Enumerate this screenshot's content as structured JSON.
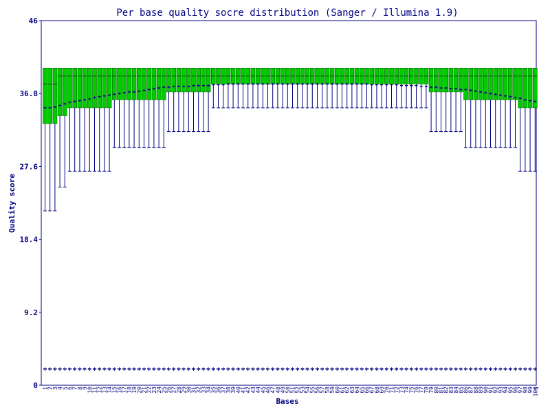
{
  "chart_data": {
    "type": "boxplot",
    "title": "Per base quality socre distribution (Sanger / Illumina 1.9)",
    "xlabel": "Bases",
    "ylabel": "Quality score",
    "ylim": [
      0,
      46
    ],
    "yticks": [
      "0",
      "9.2",
      "18.4",
      "27.6",
      "36.8",
      "46"
    ],
    "x": [
      1,
      2,
      3,
      4,
      5,
      6,
      7,
      8,
      9,
      10,
      11,
      12,
      13,
      14,
      15,
      16,
      17,
      18,
      19,
      20,
      21,
      22,
      23,
      24,
      25,
      26,
      27,
      28,
      29,
      30,
      31,
      32,
      33,
      34,
      35,
      36,
      37,
      38,
      39,
      40,
      41,
      42,
      43,
      44,
      45,
      46,
      47,
      48,
      49,
      50,
      51,
      52,
      53,
      54,
      55,
      56,
      57,
      58,
      59,
      60,
      61,
      62,
      63,
      64,
      65,
      66,
      67,
      68,
      69,
      70,
      71,
      72,
      73,
      74,
      75,
      76,
      77,
      78,
      79,
      80,
      81,
      82,
      83,
      84,
      85,
      86,
      87,
      88,
      89,
      90,
      91,
      92,
      93,
      94,
      95,
      96,
      97,
      98,
      99,
      100
    ],
    "trailing_tick": "5",
    "whisker_low": [
      22,
      22,
      22,
      25,
      25,
      27,
      27,
      27,
      27,
      27,
      27,
      27,
      27,
      27,
      30,
      30,
      30,
      30,
      30,
      30,
      30,
      30,
      30,
      30,
      30,
      32,
      32,
      32,
      32,
      32,
      32,
      32,
      32,
      32,
      35,
      35,
      35,
      35,
      35,
      35,
      35,
      35,
      35,
      35,
      35,
      35,
      35,
      35,
      35,
      35,
      35,
      35,
      35,
      35,
      35,
      35,
      35,
      35,
      35,
      35,
      35,
      35,
      35,
      35,
      35,
      35,
      35,
      35,
      35,
      35,
      35,
      35,
      35,
      35,
      35,
      35,
      35,
      35,
      32,
      32,
      32,
      32,
      32,
      32,
      32,
      30,
      30,
      30,
      30,
      30,
      30,
      30,
      30,
      30,
      30,
      30,
      27,
      27,
      27,
      27
    ],
    "q1": [
      33,
      33,
      33,
      34,
      34,
      35,
      35,
      35,
      35,
      35,
      35,
      35,
      35,
      35,
      36,
      36,
      36,
      36,
      36,
      36,
      36,
      36,
      36,
      36,
      36,
      37,
      37,
      37,
      37,
      37,
      37,
      37,
      37,
      37,
      38,
      38,
      38,
      38,
      38,
      38,
      38,
      38,
      38,
      38,
      38,
      38,
      38,
      38,
      38,
      38,
      38,
      38,
      38,
      38,
      38,
      38,
      38,
      38,
      38,
      38,
      38,
      38,
      38,
      38,
      38,
      38,
      38,
      38,
      38,
      38,
      38,
      38,
      38,
      38,
      38,
      38,
      38,
      38,
      37,
      37,
      37,
      37,
      37,
      37,
      37,
      36,
      36,
      36,
      36,
      36,
      36,
      36,
      36,
      36,
      36,
      36,
      35,
      35,
      35,
      35
    ],
    "median": [
      38,
      38,
      38,
      39,
      39,
      39,
      39,
      39,
      39,
      39,
      39,
      39,
      39,
      39,
      39,
      39,
      39,
      39,
      39,
      39,
      39,
      39,
      39,
      39,
      39,
      39,
      39,
      39,
      39,
      39,
      39,
      39,
      39,
      39,
      39,
      39,
      39,
      39,
      39,
      39,
      39,
      39,
      39,
      39,
      39,
      39,
      39,
      39,
      39,
      39,
      39,
      39,
      39,
      39,
      39,
      39,
      39,
      39,
      39,
      39,
      39,
      39,
      39,
      39,
      39,
      39,
      39,
      39,
      39,
      39,
      39,
      39,
      39,
      39,
      39,
      39,
      39,
      39,
      39,
      39,
      39,
      39,
      39,
      39,
      39,
      39,
      39,
      39,
      39,
      39,
      39,
      39,
      39,
      39,
      39,
      39,
      39,
      39,
      39,
      39
    ],
    "q3": 40,
    "whisker_high": 40,
    "mean": [
      35.0,
      35.0,
      35.1,
      35.3,
      35.5,
      35.7,
      35.8,
      35.9,
      36.0,
      36.1,
      36.3,
      36.4,
      36.5,
      36.6,
      36.7,
      36.8,
      36.9,
      37.0,
      37.0,
      37.1,
      37.2,
      37.3,
      37.4,
      37.5,
      37.6,
      37.6,
      37.7,
      37.7,
      37.7,
      37.7,
      37.8,
      37.8,
      37.8,
      37.8,
      37.9,
      37.9,
      37.9,
      38.0,
      38.0,
      38.0,
      38.0,
      38.0,
      38.0,
      38.0,
      38.0,
      38.0,
      38.0,
      38.0,
      38.0,
      38.0,
      38.0,
      38.0,
      38.0,
      38.0,
      38.0,
      38.0,
      38.0,
      38.0,
      38.0,
      38.0,
      38.0,
      38.0,
      38.0,
      38.0,
      38.0,
      38.0,
      37.9,
      37.9,
      37.9,
      37.9,
      37.9,
      37.9,
      37.8,
      37.8,
      37.8,
      37.8,
      37.7,
      37.7,
      37.6,
      37.6,
      37.5,
      37.5,
      37.4,
      37.4,
      37.3,
      37.3,
      37.2,
      37.1,
      37.0,
      36.9,
      36.8,
      36.7,
      36.6,
      36.5,
      36.4,
      36.3,
      36.2,
      36.0,
      35.9,
      35.8
    ],
    "bottom_marker": 2,
    "colors": {
      "box": "#00cc00",
      "line": "#000080",
      "mean": "#000080",
      "background": "#ffffff"
    }
  }
}
